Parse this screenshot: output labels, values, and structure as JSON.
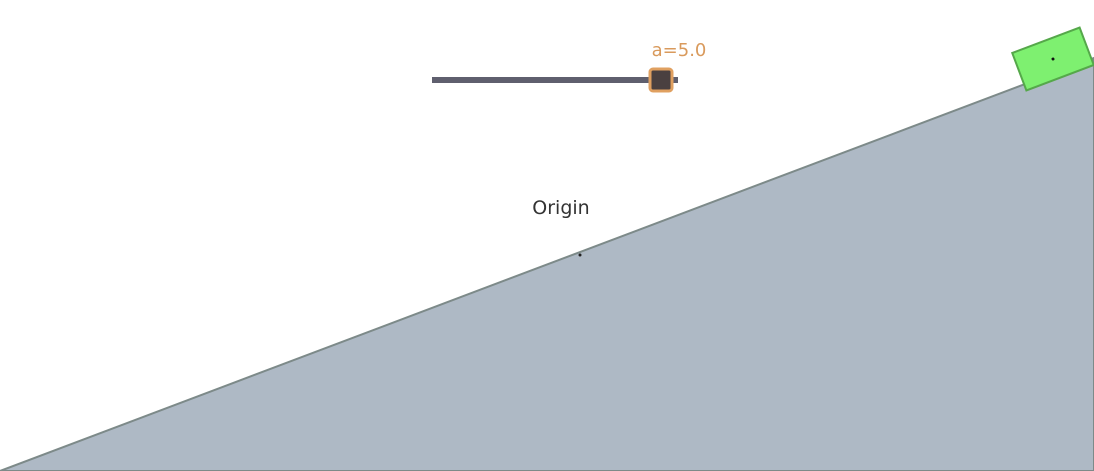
{
  "canvas": {
    "background_color": "#ffffff"
  },
  "slider": {
    "label": "a=5.0",
    "label_color": "#d99a5c",
    "track_color": "#5f5f6e",
    "handle_fill": "#4a4040",
    "handle_border": "#e0a060"
  },
  "incline": {
    "fill_color": "#aeb9c5",
    "edge_color": "#7d8a89"
  },
  "block": {
    "fill_color": "#7ef070",
    "border_color": "#55a84a"
  },
  "origin": {
    "label": "Origin"
  }
}
